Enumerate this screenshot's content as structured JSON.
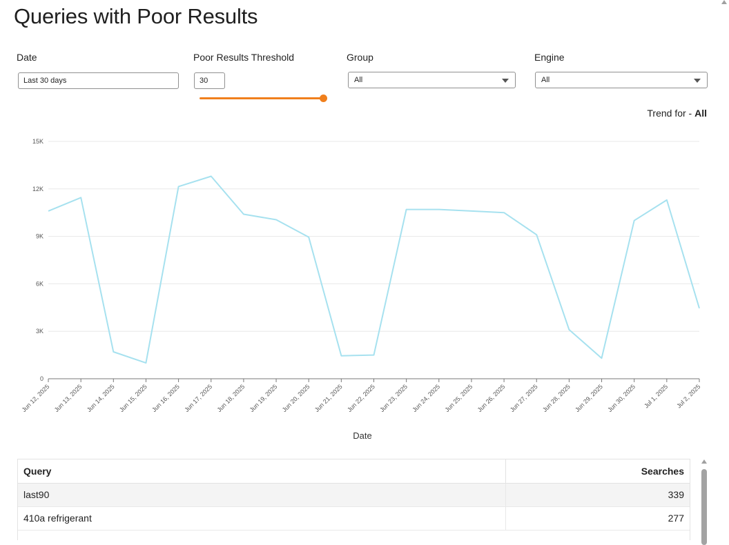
{
  "page": {
    "title": "Queries with Poor Results"
  },
  "filters": {
    "date": {
      "label": "Date",
      "value": "Last 30 days"
    },
    "threshold": {
      "label": "Poor Results Threshold",
      "value": "30",
      "slider_level_fraction": 1.0
    },
    "group": {
      "label": "Group",
      "value": "All"
    },
    "engine": {
      "label": "Engine",
      "value": "All"
    }
  },
  "trend": {
    "prefix": "Trend for - ",
    "value": "All"
  },
  "colors": {
    "line": "#a6e1ef",
    "accent": "#f07f1c",
    "grid": "#e8e8e8"
  },
  "chart_data": {
    "type": "line",
    "xlabel": "Date",
    "ylabel": "",
    "ylim": [
      0,
      15000
    ],
    "y_ticks": [
      0,
      3000,
      6000,
      9000,
      12000,
      15000
    ],
    "y_tick_labels": [
      "0",
      "3K",
      "6K",
      "9K",
      "12K",
      "15K"
    ],
    "grid": true,
    "categories": [
      "Jun 12, 2025",
      "Jun 13, 2025",
      "Jun 14, 2025",
      "Jun 15, 2025",
      "Jun 16, 2025",
      "Jun 17, 2025",
      "Jun 18, 2025",
      "Jun 19, 2025",
      "Jun 20, 2025",
      "Jun 21, 2025",
      "Jun 22, 2025",
      "Jun 23, 2025",
      "Jun 24, 2025",
      "Jun 25, 2025",
      "Jun 26, 2025",
      "Jun 27, 2025",
      "Jun 28, 2025",
      "Jun 29, 2025",
      "Jun 30, 2025",
      "Jul 1, 2025",
      "Jul 2, 2025"
    ],
    "values": [
      10600,
      11450,
      1700,
      1000,
      12150,
      12800,
      10400,
      10050,
      8950,
      1450,
      1500,
      10700,
      10700,
      10600,
      10500,
      9100,
      3100,
      1300,
      10000,
      11300,
      4450
    ]
  },
  "table": {
    "columns": [
      "Query",
      "Searches"
    ],
    "rows": [
      {
        "query": "last90",
        "searches": "339"
      },
      {
        "query": "410a refrigerant",
        "searches": "277"
      }
    ]
  }
}
